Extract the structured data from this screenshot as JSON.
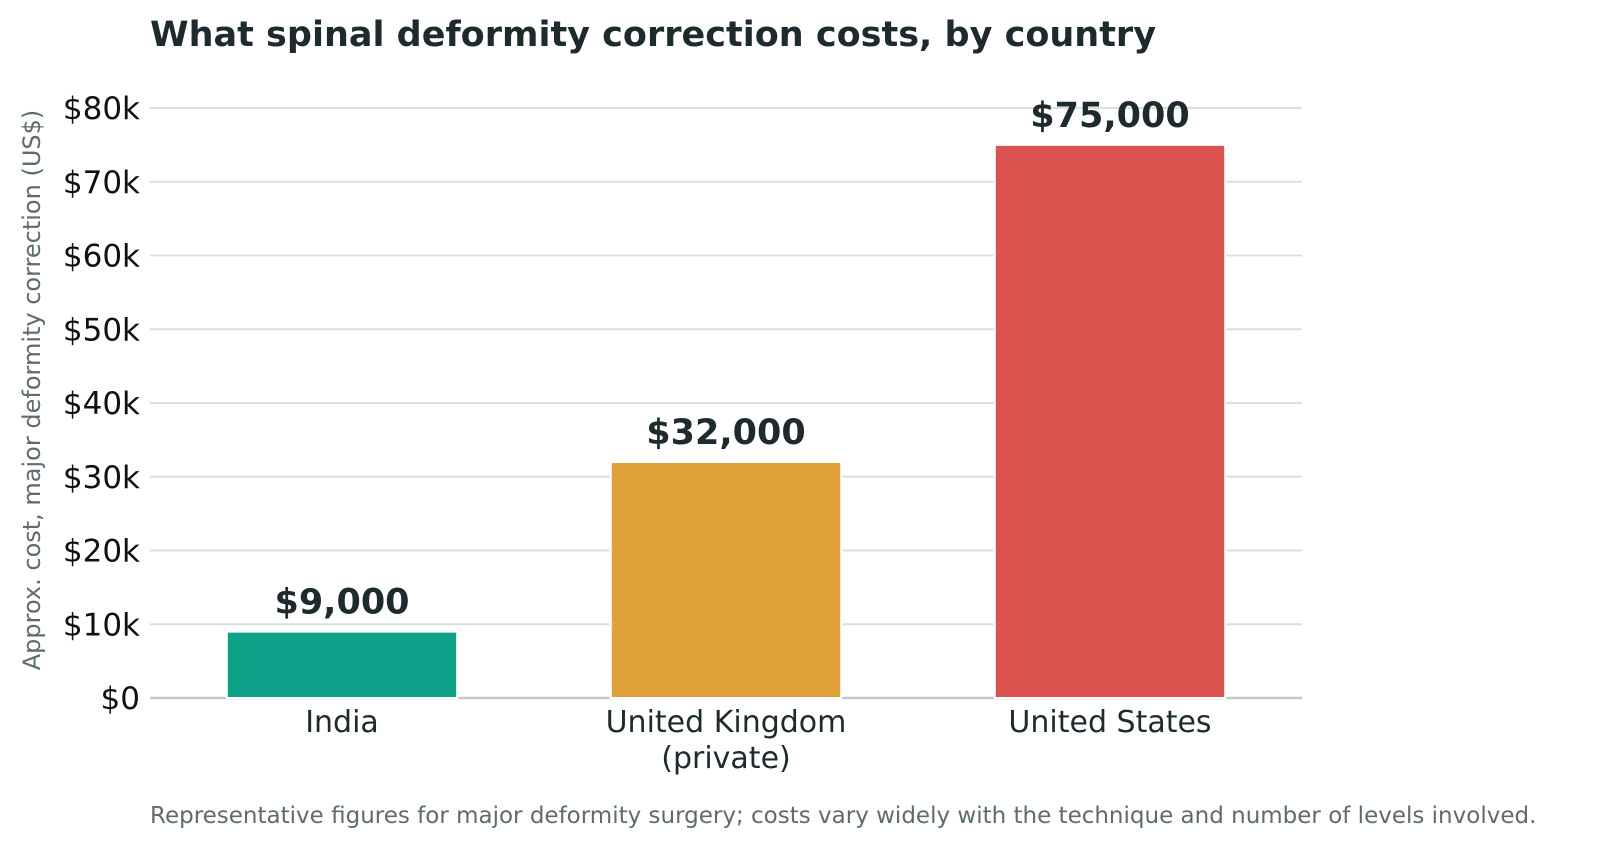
{
  "chart_data": {
    "type": "bar",
    "title": "What spinal deformity correction costs, by country",
    "xlabel": "",
    "ylabel": "Approx. cost, major deformity correction (US$)",
    "categories": [
      [
        "India"
      ],
      [
        "United Kingdom",
        "(private)"
      ],
      [
        "United States"
      ]
    ],
    "values": [
      9000,
      32000,
      75000
    ],
    "value_labels": [
      "$9,000",
      "$32,000",
      "$75,000"
    ],
    "colors": [
      "#0fa088",
      "#e0a03a",
      "#da534f"
    ],
    "ylim": [
      0,
      80000
    ],
    "yticks": [
      0,
      10000,
      20000,
      30000,
      40000,
      50000,
      60000,
      70000,
      80000
    ],
    "ytick_labels": [
      "$0",
      "$10k",
      "$20k",
      "$30k",
      "$40k",
      "$50k",
      "$60k",
      "$70k",
      "$80k"
    ],
    "grid": "horizontal",
    "legend": "none",
    "caption": "Representative figures for major deformity surgery; costs vary widely with the technique and number of levels involved."
  }
}
